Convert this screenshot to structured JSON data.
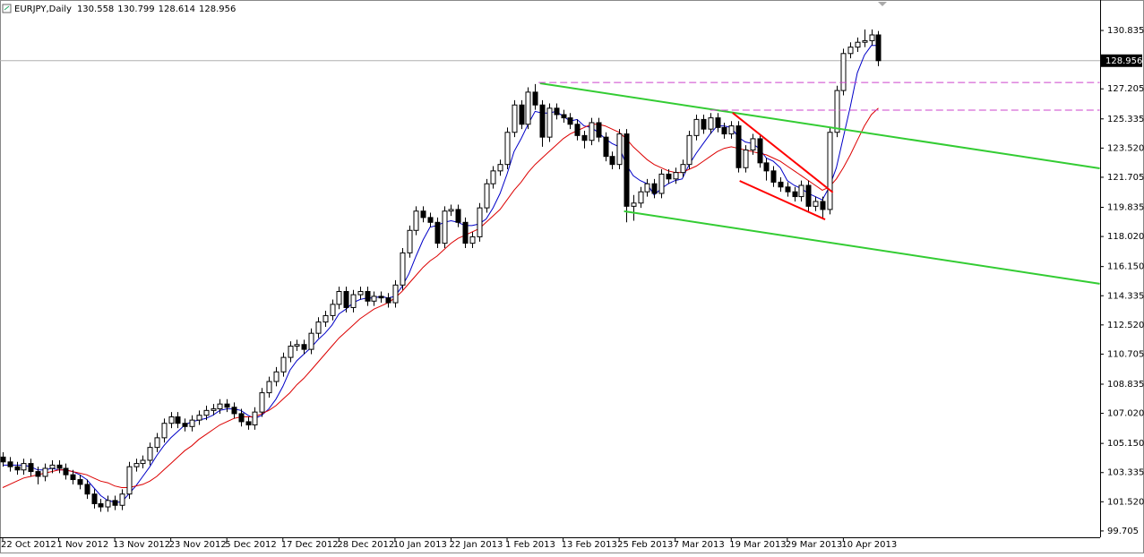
{
  "chart_data": {
    "type": "candlestick",
    "title": "EURJPY,Daily",
    "categories": [
      "22 Oct 2012",
      null,
      null,
      null,
      null,
      null,
      null,
      null,
      "1 Nov 2012",
      null,
      null,
      null,
      null,
      null,
      null,
      null,
      "13 Nov 2012",
      null,
      null,
      null,
      null,
      null,
      null,
      null,
      "23 Nov 2012",
      null,
      null,
      null,
      null,
      null,
      null,
      null,
      "5 Dec 2012",
      null,
      null,
      null,
      null,
      null,
      null,
      null,
      "17 Dec 2012",
      null,
      null,
      null,
      null,
      null,
      null,
      null,
      "28 Dec 2012",
      null,
      null,
      null,
      null,
      null,
      null,
      null,
      "10 Jan 2013",
      null,
      null,
      null,
      null,
      null,
      null,
      null,
      "22 Jan 2013",
      null,
      null,
      null,
      null,
      null,
      null,
      null,
      "1 Feb 2013",
      null,
      null,
      null,
      null,
      null,
      null,
      null,
      "13 Feb 2013",
      null,
      null,
      null,
      null,
      null,
      null,
      null,
      "25 Feb 2013",
      null,
      null,
      null,
      null,
      null,
      null,
      null,
      "7 Mar 2013",
      null,
      null,
      null,
      null,
      null,
      null,
      null,
      "19 Mar 2013",
      null,
      null,
      null,
      null,
      null,
      null,
      null,
      "29 Mar 2013",
      null,
      null,
      null,
      null,
      null,
      null,
      null,
      "10 Apr 2013",
      null,
      null,
      null,
      null,
      null
    ],
    "open": [
      104.3,
      104.0,
      103.7,
      103.5,
      103.9,
      103.4,
      103.1,
      103.6,
      103.8,
      103.6,
      103.2,
      102.9,
      102.6,
      102.0,
      101.4,
      101.2,
      101.6,
      101.3,
      102.0,
      103.7,
      103.9,
      104.1,
      104.9,
      105.5,
      106.4,
      106.8,
      106.4,
      106.2,
      106.6,
      106.9,
      107.2,
      107.3,
      107.6,
      107.4,
      107.0,
      106.5,
      106.3,
      107.1,
      108.3,
      109.0,
      109.6,
      110.5,
      111.2,
      111.3,
      111.0,
      112.0,
      112.7,
      113.1,
      113.8,
      114.6,
      113.6,
      114.4,
      114.6,
      114.0,
      114.3,
      114.2,
      113.9,
      115.0,
      117.0,
      118.4,
      119.6,
      119.2,
      118.9,
      117.6,
      119.6,
      119.7,
      118.9,
      117.6,
      118.0,
      119.8,
      121.3,
      122.1,
      122.5,
      124.5,
      126.2,
      125.0,
      127.0,
      126.2,
      124.2,
      126.0,
      125.6,
      125.4,
      125.0,
      124.3,
      124.0,
      125.1,
      124.2,
      123.0,
      122.5,
      124.4,
      119.9,
      120.1,
      120.8,
      121.3,
      120.7,
      121.9,
      121.6,
      122.0,
      122.5,
      124.3,
      125.3,
      124.7,
      125.4,
      124.8,
      124.4,
      124.9,
      122.3,
      123.4,
      124.1,
      122.6,
      122.1,
      121.4,
      121.1,
      120.8,
      120.5,
      121.2,
      119.9,
      120.2,
      119.7,
      124.5,
      127.1,
      129.4,
      129.8,
      130.1,
      130.2,
      130.558
    ],
    "high": [
      104.6,
      104.3,
      104.0,
      104.2,
      104.2,
      103.7,
      103.9,
      104.1,
      104.1,
      103.9,
      103.5,
      103.2,
      102.9,
      102.3,
      101.7,
      101.9,
      101.9,
      102.3,
      104.0,
      104.2,
      104.4,
      105.2,
      105.8,
      106.7,
      107.1,
      107.1,
      106.7,
      106.9,
      107.2,
      107.5,
      107.6,
      107.9,
      107.9,
      107.7,
      107.3,
      106.8,
      107.4,
      108.6,
      109.3,
      109.9,
      110.8,
      111.5,
      111.6,
      111.6,
      112.3,
      113.0,
      113.4,
      114.1,
      114.9,
      114.9,
      114.7,
      114.9,
      114.9,
      114.6,
      114.6,
      114.5,
      115.3,
      117.3,
      118.7,
      119.9,
      119.9,
      119.5,
      119.2,
      119.9,
      120.0,
      120.0,
      119.2,
      118.3,
      120.1,
      121.6,
      122.4,
      122.8,
      124.8,
      126.5,
      126.5,
      127.3,
      127.5,
      126.5,
      126.3,
      126.3,
      125.9,
      125.7,
      125.3,
      124.6,
      125.4,
      125.4,
      124.5,
      123.3,
      124.7,
      124.7,
      120.6,
      121.1,
      121.6,
      121.6,
      122.2,
      122.2,
      122.3,
      122.8,
      124.6,
      125.6,
      125.6,
      125.7,
      125.7,
      125.1,
      125.2,
      125.2,
      123.7,
      124.4,
      124.4,
      122.9,
      122.4,
      121.7,
      121.4,
      121.1,
      121.5,
      121.5,
      120.5,
      120.5,
      124.8,
      127.4,
      129.7,
      130.1,
      130.4,
      130.9,
      130.9,
      130.799
    ],
    "low": [
      103.7,
      103.4,
      103.2,
      103.2,
      103.1,
      102.6,
      102.8,
      103.3,
      103.3,
      102.9,
      102.6,
      102.3,
      101.7,
      101.1,
      100.9,
      100.9,
      101.0,
      101.0,
      101.7,
      103.4,
      103.6,
      103.8,
      104.6,
      105.2,
      106.1,
      106.1,
      105.9,
      105.9,
      106.3,
      106.6,
      106.9,
      107.0,
      107.1,
      106.7,
      106.2,
      106.0,
      106.0,
      106.8,
      108.0,
      108.7,
      109.3,
      110.2,
      110.9,
      110.7,
      110.7,
      111.7,
      112.4,
      112.8,
      113.5,
      113.3,
      113.3,
      114.1,
      113.7,
      113.7,
      113.9,
      113.6,
      113.6,
      114.7,
      116.7,
      118.1,
      118.9,
      118.6,
      117.3,
      117.3,
      119.3,
      118.6,
      117.3,
      117.3,
      117.7,
      119.5,
      121.0,
      121.8,
      122.2,
      124.2,
      124.7,
      124.7,
      125.9,
      123.6,
      123.9,
      125.3,
      125.1,
      124.7,
      124.0,
      123.5,
      123.7,
      123.9,
      122.7,
      122.2,
      122.2,
      118.9,
      119.0,
      119.8,
      120.5,
      120.4,
      120.4,
      121.3,
      121.3,
      121.7,
      122.2,
      124.0,
      124.4,
      124.4,
      124.5,
      124.1,
      124.1,
      122.0,
      122.0,
      123.1,
      122.3,
      121.5,
      121.1,
      120.8,
      120.5,
      120.2,
      120.2,
      119.6,
      119.6,
      119.2,
      119.4,
      124.2,
      126.8,
      129.1,
      129.5,
      129.8,
      129.9,
      128.614
    ],
    "close": [
      104.0,
      103.7,
      103.5,
      103.9,
      103.4,
      103.1,
      103.6,
      103.8,
      103.6,
      103.2,
      102.9,
      102.6,
      102.0,
      101.4,
      101.2,
      101.6,
      101.3,
      102.0,
      103.7,
      103.9,
      104.1,
      104.9,
      105.5,
      106.4,
      106.8,
      106.4,
      106.2,
      106.6,
      106.9,
      107.2,
      107.3,
      107.6,
      107.4,
      107.0,
      106.5,
      106.3,
      107.1,
      108.3,
      109.0,
      109.6,
      110.5,
      111.2,
      111.3,
      111.0,
      112.0,
      112.7,
      113.1,
      113.8,
      114.6,
      113.6,
      114.4,
      114.6,
      114.0,
      114.3,
      114.2,
      113.9,
      115.0,
      117.0,
      118.4,
      119.6,
      119.2,
      118.9,
      117.6,
      119.6,
      119.7,
      118.9,
      117.6,
      118.0,
      119.8,
      121.3,
      122.1,
      122.5,
      124.5,
      126.2,
      125.0,
      127.0,
      126.2,
      124.2,
      126.0,
      125.6,
      125.4,
      125.0,
      124.3,
      124.0,
      125.1,
      124.2,
      123.0,
      122.5,
      124.4,
      119.9,
      120.1,
      120.8,
      121.3,
      120.7,
      121.9,
      121.6,
      122.0,
      122.5,
      124.3,
      125.3,
      124.7,
      125.4,
      124.8,
      124.4,
      124.9,
      122.3,
      123.4,
      124.1,
      122.6,
      122.1,
      121.4,
      121.1,
      120.8,
      120.5,
      121.2,
      119.9,
      120.2,
      119.7,
      124.5,
      127.1,
      129.4,
      129.8,
      130.1,
      130.2,
      130.558,
      128.956
    ],
    "moving_averages": [
      {
        "color": "#0000c8",
        "values": [
          103.8,
          103.8,
          103.8,
          103.8,
          103.7,
          103.5,
          103.5,
          103.6,
          103.5,
          103.5,
          103.4,
          103.2,
          102.9,
          102.4,
          101.9,
          101.6,
          101.5,
          101.5,
          102.0,
          102.5,
          103.1,
          103.7,
          104.4,
          105.0,
          105.5,
          105.9,
          106.3,
          106.5,
          106.6,
          106.7,
          106.9,
          107.2,
          107.3,
          107.3,
          107.2,
          106.9,
          106.7,
          106.9,
          107.3,
          107.9,
          108.7,
          109.7,
          110.3,
          110.7,
          111.1,
          111.6,
          112.0,
          112.5,
          113.2,
          113.5,
          113.9,
          114.1,
          114.2,
          114.2,
          114.3,
          114.2,
          114.3,
          114.9,
          115.7,
          116.8,
          117.8,
          118.6,
          118.7,
          118.9,
          119.0,
          118.9,
          118.7,
          118.7,
          118.8,
          119.1,
          119.8,
          120.7,
          121.9,
          123.3,
          124.1,
          125.0,
          125.8,
          125.7,
          125.7,
          125.8,
          125.5,
          125.2,
          125.3,
          124.9,
          124.8,
          124.5,
          124.1,
          123.8,
          123.6,
          122.5,
          121.8,
          121.5,
          121.3,
          120.6,
          121.0,
          121.3,
          121.5,
          121.6,
          122.5,
          123.2,
          123.8,
          124.4,
          124.9,
          124.9,
          124.8,
          124.2,
          123.9,
          123.8,
          123.5,
          122.9,
          122.7,
          122.3,
          121.5,
          121.2,
          121.0,
          120.7,
          120.5,
          120.3,
          121.1,
          122.3,
          124.2,
          126.1,
          128.2,
          129.3,
          129.9,
          129.9
        ]
      },
      {
        "color": "#dc0000",
        "values": [
          102.4,
          102.6,
          102.8,
          103.0,
          103.1,
          103.2,
          103.3,
          103.4,
          103.5,
          103.5,
          103.4,
          103.3,
          103.2,
          103.0,
          102.8,
          102.7,
          102.5,
          102.4,
          102.4,
          102.5,
          102.6,
          102.8,
          103.1,
          103.5,
          103.9,
          104.3,
          104.7,
          105.0,
          105.4,
          105.7,
          106.0,
          106.3,
          106.5,
          106.7,
          106.8,
          106.8,
          106.8,
          107.0,
          107.2,
          107.5,
          107.9,
          108.3,
          108.8,
          109.2,
          109.7,
          110.2,
          110.7,
          111.2,
          111.7,
          112.1,
          112.5,
          112.9,
          113.2,
          113.5,
          113.7,
          113.9,
          114.2,
          114.6,
          115.1,
          115.6,
          116.1,
          116.5,
          116.8,
          117.2,
          117.6,
          117.9,
          118.1,
          118.3,
          118.5,
          118.9,
          119.3,
          119.7,
          120.3,
          120.9,
          121.4,
          122.0,
          122.5,
          122.9,
          123.3,
          123.7,
          124.1,
          124.4,
          124.6,
          124.8,
          125.0,
          125.0,
          124.9,
          124.7,
          124.5,
          124.1,
          123.6,
          123.2,
          122.8,
          122.5,
          122.3,
          122.1,
          122.0,
          122.0,
          122.2,
          122.4,
          122.7,
          123.0,
          123.3,
          123.5,
          123.6,
          123.5,
          123.4,
          123.3,
          123.2,
          123.1,
          122.9,
          122.7,
          122.4,
          122.1,
          121.8,
          121.5,
          121.2,
          120.9,
          121.1,
          121.6,
          122.3,
          123.1,
          124.0,
          124.9,
          125.6,
          126.0
        ]
      }
    ],
    "trendlines": [
      {
        "color": "#33cc33",
        "x": [
          76.7,
          156.6
        ],
        "y": [
          127.55,
          122.26
        ]
      },
      {
        "color": "#33cc33",
        "x": [
          88.7,
          156.6
        ],
        "y": [
          119.59,
          115.08
        ]
      },
      {
        "color": "#ff0000",
        "x": [
          104.2,
          118.5
        ],
        "y": [
          125.71,
          120.76
        ]
      },
      {
        "color": "#ff0000",
        "x": [
          105.2,
          117.4
        ],
        "y": [
          121.48,
          119.08
        ]
      },
      {
        "color": "#cc44cc",
        "dashed": true,
        "x": [
          76.5,
          156.6
        ],
        "y": [
          127.6,
          127.6
        ]
      },
      {
        "color": "#cc44cc",
        "dashed": true,
        "x": [
          101.0,
          156.6
        ],
        "y": [
          125.88,
          125.88
        ]
      }
    ],
    "bull_color": "#ffffff",
    "bear_color": "#000000",
    "xlim": [
      -0.38,
      156.65
    ],
    "ylim": [
      99.31,
      132.73
    ],
    "yticks": [
      99.705,
      {
        "value": 101.52,
        "label": "101.520"
      },
      103.335,
      {
        "value": 105.15,
        "label": "105.150"
      },
      {
        "value": 107.02,
        "label": "107.020"
      },
      108.835,
      110.705,
      {
        "value": 112.52,
        "label": "112.520"
      },
      114.335,
      {
        "value": 116.15,
        "label": "116.150"
      },
      {
        "value": 118.02,
        "label": "118.020"
      },
      119.835,
      121.705,
      {
        "value": 123.52,
        "label": "123.520"
      },
      125.335,
      127.205,
      130.835
    ]
  }
}
